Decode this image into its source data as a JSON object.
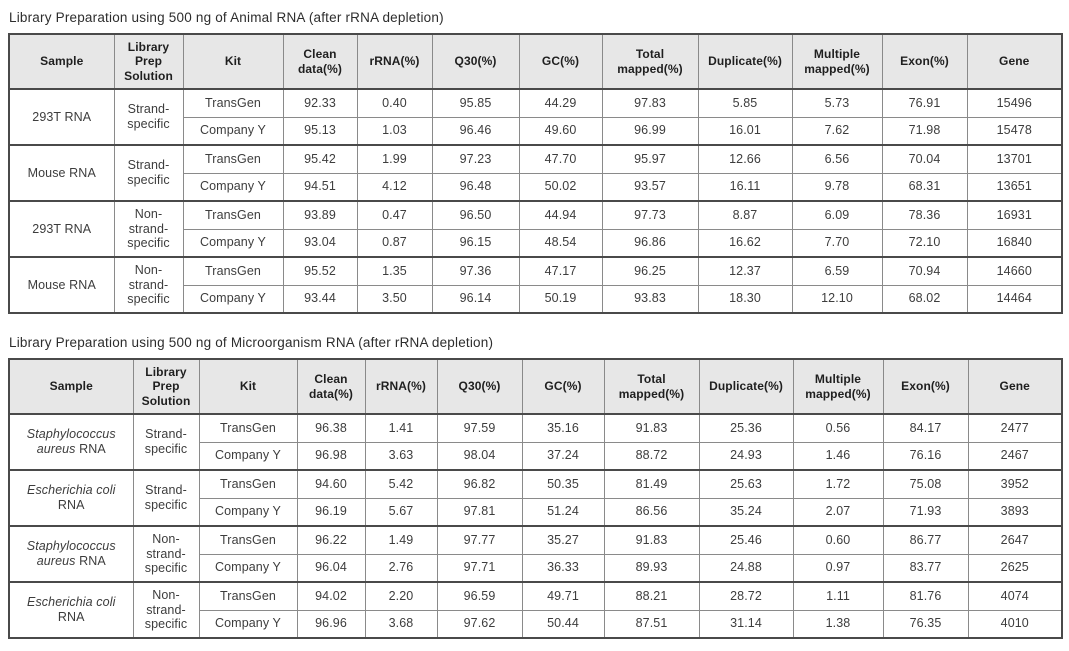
{
  "tables": [
    {
      "title": "Library Preparation using 500 ng of Animal RNA (after rRNA depletion)",
      "headers": [
        "Sample",
        "Library Prep Solution",
        "Kit",
        "Clean data(%)",
        "rRNA(%)",
        "Q30(%)",
        "GC(%)",
        "Total mapped(%)",
        "Duplicate(%)",
        "Multiple mapped(%)",
        "Exon(%)",
        "Gene"
      ],
      "groups": [
        {
          "sample": {
            "italic": "",
            "regular": "293T RNA"
          },
          "prep": "Strand-specific",
          "rows": [
            {
              "kit": "TransGen",
              "values": [
                "92.33",
                "0.40",
                "95.85",
                "44.29",
                "97.83",
                "5.85",
                "5.73",
                "76.91",
                "15496"
              ]
            },
            {
              "kit": "Company Y",
              "values": [
                "95.13",
                "1.03",
                "96.46",
                "49.60",
                "96.99",
                "16.01",
                "7.62",
                "71.98",
                "15478"
              ]
            }
          ]
        },
        {
          "sample": {
            "italic": "",
            "regular": "Mouse RNA"
          },
          "prep": "Strand-specific",
          "rows": [
            {
              "kit": "TransGen",
              "values": [
                "95.42",
                "1.99",
                "97.23",
                "47.70",
                "95.97",
                "12.66",
                "6.56",
                "70.04",
                "13701"
              ]
            },
            {
              "kit": "Company Y",
              "values": [
                "94.51",
                "4.12",
                "96.48",
                "50.02",
                "93.57",
                "16.11",
                "9.78",
                "68.31",
                "13651"
              ]
            }
          ]
        },
        {
          "sample": {
            "italic": "",
            "regular": "293T RNA"
          },
          "prep": "Non-strand-specific",
          "rows": [
            {
              "kit": "TransGen",
              "values": [
                "93.89",
                "0.47",
                "96.50",
                "44.94",
                "97.73",
                "8.87",
                "6.09",
                "78.36",
                "16931"
              ]
            },
            {
              "kit": "Company Y",
              "values": [
                "93.04",
                "0.87",
                "96.15",
                "48.54",
                "96.86",
                "16.62",
                "7.70",
                "72.10",
                "16840"
              ]
            }
          ]
        },
        {
          "sample": {
            "italic": "",
            "regular": "Mouse RNA"
          },
          "prep": "Non-strand-specific",
          "rows": [
            {
              "kit": "TransGen",
              "values": [
                "95.52",
                "1.35",
                "97.36",
                "47.17",
                "96.25",
                "12.37",
                "6.59",
                "70.94",
                "14660"
              ]
            },
            {
              "kit": "Company Y",
              "values": [
                "93.44",
                "3.50",
                "96.14",
                "50.19",
                "93.83",
                "18.30",
                "12.10",
                "68.02",
                "14464"
              ]
            }
          ]
        }
      ]
    },
    {
      "title": "Library Preparation using 500 ng of Microorganism RNA (after rRNA depletion)",
      "headers": [
        "Sample",
        "Library Prep Solution",
        "Kit",
        "Clean data(%)",
        "rRNA(%)",
        "Q30(%)",
        "GC(%)",
        "Total mapped(%)",
        "Duplicate(%)",
        "Multiple mapped(%)",
        "Exon(%)",
        "Gene"
      ],
      "groups": [
        {
          "sample": {
            "italic": "Staphylococcus aureus",
            "regular": "RNA"
          },
          "prep": "Strand-specific",
          "rows": [
            {
              "kit": "TransGen",
              "values": [
                "96.38",
                "1.41",
                "97.59",
                "35.16",
                "91.83",
                "25.36",
                "0.56",
                "84.17",
                "2477"
              ]
            },
            {
              "kit": "Company Y",
              "values": [
                "96.98",
                "3.63",
                "98.04",
                "37.24",
                "88.72",
                "24.93",
                "1.46",
                "76.16",
                "2467"
              ]
            }
          ]
        },
        {
          "sample": {
            "italic": "Escherichia coli",
            "regular": "RNA"
          },
          "prep": "Strand-specific",
          "rows": [
            {
              "kit": "TransGen",
              "values": [
                "94.60",
                "5.42",
                "96.82",
                "50.35",
                "81.49",
                "25.63",
                "1.72",
                "75.08",
                "3952"
              ]
            },
            {
              "kit": "Company Y",
              "values": [
                "96.19",
                "5.67",
                "97.81",
                "51.24",
                "86.56",
                "35.24",
                "2.07",
                "71.93",
                "3893"
              ]
            }
          ]
        },
        {
          "sample": {
            "italic": "Staphylococcus aureus",
            "regular": "RNA"
          },
          "prep": "Non-strand-specific",
          "rows": [
            {
              "kit": "TransGen",
              "values": [
                "96.22",
                "1.49",
                "97.77",
                "35.27",
                "91.83",
                "25.46",
                "0.60",
                "86.77",
                "2647"
              ]
            },
            {
              "kit": "Company Y",
              "values": [
                "96.04",
                "2.76",
                "97.71",
                "36.33",
                "89.93",
                "24.88",
                "0.97",
                "83.77",
                "2625"
              ]
            }
          ]
        },
        {
          "sample": {
            "italic": "Escherichia coli",
            "regular": "RNA"
          },
          "prep": "Non-strand-specific",
          "rows": [
            {
              "kit": "TransGen",
              "values": [
                "94.02",
                "2.20",
                "96.59",
                "49.71",
                "88.21",
                "28.72",
                "1.11",
                "81.76",
                "4074"
              ]
            },
            {
              "kit": "Company Y",
              "values": [
                "96.96",
                "3.68",
                "97.62",
                "50.44",
                "87.51",
                "31.14",
                "1.38",
                "76.35",
                "4010"
              ]
            }
          ]
        }
      ]
    }
  ]
}
